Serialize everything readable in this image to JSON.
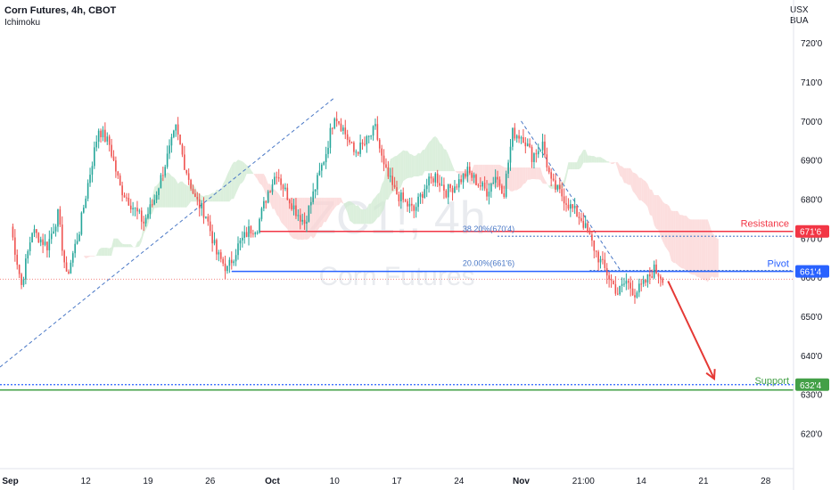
{
  "header": {
    "title": "Corn Futures, 4h, CBOT",
    "indicator": "Ichimoku",
    "currency_line1": "USX",
    "currency_line2": "BUA"
  },
  "watermark": {
    "symbol": "ZC1!, 4h",
    "name": "Corn Futures"
  },
  "colors": {
    "up": "#26a69a",
    "down": "#ef5350",
    "resistance": "#f23645",
    "pivot": "#2962ff",
    "support": "#43a047",
    "fib": "#4a78c6",
    "cloud_bull": "#cfe9d0",
    "cloud_bear": "#fbd3d3",
    "arrow": "#e53935"
  },
  "chart_data": {
    "type": "candlestick",
    "y_ticks": [
      {
        "label": "720'0",
        "value": 720
      },
      {
        "label": "710'0",
        "value": 710
      },
      {
        "label": "700'0",
        "value": 700
      },
      {
        "label": "690'0",
        "value": 690
      },
      {
        "label": "680'0",
        "value": 680
      },
      {
        "label": "670'0",
        "value": 670
      },
      {
        "label": "660'0",
        "value": 660
      },
      {
        "label": "650'0",
        "value": 650
      },
      {
        "label": "640'0",
        "value": 640
      },
      {
        "label": "630'0",
        "value": 630
      },
      {
        "label": "620'0",
        "value": 620
      }
    ],
    "ylim": [
      611,
      731
    ],
    "x_ticks": [
      "Sep",
      "12",
      "19",
      "26",
      "Oct",
      "10",
      "17",
      "24",
      "Nov",
      "21:00",
      "14",
      "21",
      "28"
    ],
    "x_tick_bar_index": [
      -4,
      35,
      64,
      93,
      122,
      151,
      180,
      209,
      238,
      267,
      294,
      323,
      352
    ],
    "x_range_bars": [
      -5,
      365
    ],
    "price_path": [
      [
        0,
        673
      ],
      [
        5,
        658
      ],
      [
        10,
        672
      ],
      [
        17,
        668
      ],
      [
        22,
        676
      ],
      [
        26,
        660
      ],
      [
        32,
        672
      ],
      [
        36,
        684
      ],
      [
        41,
        698
      ],
      [
        46,
        694
      ],
      [
        51,
        683
      ],
      [
        57,
        678
      ],
      [
        62,
        674
      ],
      [
        67,
        680
      ],
      [
        72,
        689
      ],
      [
        77,
        698
      ],
      [
        81,
        689
      ],
      [
        86,
        680
      ],
      [
        91,
        676
      ],
      [
        96,
        666
      ],
      [
        101,
        662
      ],
      [
        106,
        668
      ],
      [
        111,
        672
      ],
      [
        115,
        673
      ],
      [
        120,
        682
      ],
      [
        124,
        687
      ],
      [
        128,
        682
      ],
      [
        133,
        677
      ],
      [
        137,
        674
      ],
      [
        142,
        683
      ],
      [
        147,
        692
      ],
      [
        151,
        702
      ],
      [
        155,
        698
      ],
      [
        160,
        692
      ],
      [
        165,
        694
      ],
      [
        170,
        698
      ],
      [
        174,
        688
      ],
      [
        179,
        682
      ],
      [
        184,
        679
      ],
      [
        188,
        677
      ],
      [
        193,
        683
      ],
      [
        198,
        686
      ],
      [
        203,
        682
      ],
      [
        208,
        684
      ],
      [
        213,
        687
      ],
      [
        218,
        684
      ],
      [
        222,
        682
      ],
      [
        226,
        686
      ],
      [
        230,
        682
      ],
      [
        234,
        697
      ],
      [
        239,
        696
      ],
      [
        243,
        691
      ],
      [
        248,
        694
      ],
      [
        252,
        684
      ],
      [
        257,
        681
      ],
      [
        261,
        678
      ],
      [
        266,
        675
      ],
      [
        270,
        670
      ],
      [
        274,
        665
      ],
      [
        279,
        660
      ],
      [
        283,
        656
      ],
      [
        287,
        659
      ],
      [
        291,
        656
      ],
      [
        295,
        658
      ],
      [
        300,
        662
      ],
      [
        304,
        660
      ]
    ],
    "levels": {
      "resistance": {
        "label": "Resistance",
        "value": 671.75,
        "badge": "671'6"
      },
      "pivot": {
        "label": "Pivot",
        "value": 661.5,
        "badge": "661'4"
      },
      "support": {
        "label": "Support",
        "value": 632.5,
        "badge": "632'4"
      }
    },
    "fib": [
      {
        "label": "38.20%(670'4)",
        "value": 670.5
      },
      {
        "label": "20.00%(661'6)",
        "value": 661.75
      }
    ],
    "current_price": 659.5,
    "projection": {
      "from": [
        304,
        659
      ],
      "to": [
        328,
        634
      ]
    }
  }
}
